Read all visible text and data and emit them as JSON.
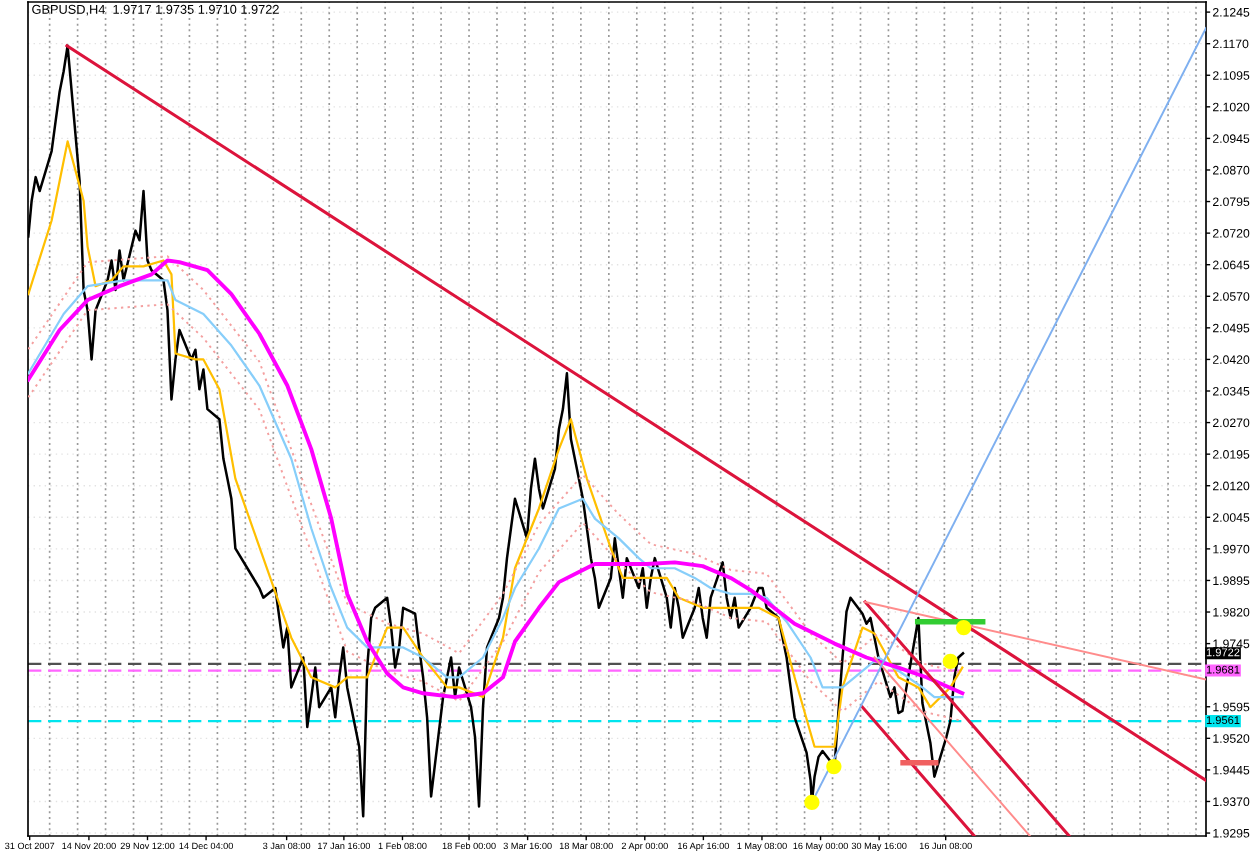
{
  "chart_data": {
    "type": "line",
    "title": "GBPUSD,H4  1.9717 1.9735 1.9710 1.9722",
    "xlim": [
      "2007-10-30T14:00",
      "2008-08-20T12:00"
    ],
    "xticks": [
      {
        "value": "2007-10-31",
        "label": "31 Oct 2007"
      },
      {
        "value": "2007-11-14T20:00",
        "label": "14 Nov 20:00"
      },
      {
        "value": "2007-11-29T12:00",
        "label": "29 Nov 12:00"
      },
      {
        "value": "2007-12-14T04:00",
        "label": "14 Dec 04:00"
      },
      {
        "value": "2008-01-03T08:00",
        "label": "3 Jan 08:00"
      },
      {
        "value": "2008-01-17T16:00",
        "label": "17 Jan 16:00"
      },
      {
        "value": "2008-02-01T08:00",
        "label": "1 Feb 08:00"
      },
      {
        "value": "2008-02-18T00:00",
        "label": "18 Feb 00:00"
      },
      {
        "value": "2008-03-03T16:00",
        "label": "3 Mar 16:00"
      },
      {
        "value": "2008-03-18T08:00",
        "label": "18 Mar 08:00"
      },
      {
        "value": "2008-04-02T00:00",
        "label": "2 Apr 00:00"
      },
      {
        "value": "2008-04-16T16:00",
        "label": "16 Apr 16:00"
      },
      {
        "value": "2008-05-01T08:00",
        "label": "1 May 08:00"
      },
      {
        "value": "2008-05-16T00:00",
        "label": "16 May 00:00"
      },
      {
        "value": "2008-05-30T16:00",
        "label": "30 May 16:00"
      },
      {
        "value": "2008-06-16T08:00",
        "label": "16 Jun 08:00"
      }
    ],
    "ylim": [
      1.9288,
      2.1269
    ],
    "yticks": [
      2.1245,
      {
        "value": 2.117,
        "label": "2.1170"
      },
      2.1095,
      {
        "value": 2.102,
        "label": "2.1020"
      },
      2.0945,
      {
        "value": 2.087,
        "label": "2.0870"
      },
      2.0795,
      {
        "value": 2.072,
        "label": "2.0720"
      },
      2.0645,
      {
        "value": 2.057,
        "label": "2.0570"
      },
      2.0495,
      {
        "value": 2.042,
        "label": "2.0420"
      },
      2.0345,
      {
        "value": 2.027,
        "label": "2.0270"
      },
      2.0195,
      {
        "value": 2.012,
        "label": "2.0120"
      },
      2.0045,
      {
        "value": 1.997,
        "label": "1.9970"
      },
      1.9895,
      {
        "value": 1.982,
        "label": "1.9820"
      },
      1.9745,
      {
        "value": 1.967,
        "label": null
      },
      1.9595,
      {
        "value": 1.952,
        "label": "1.9520"
      },
      1.9445,
      {
        "value": 1.937,
        "label": "1.9370"
      },
      1.9295
    ],
    "grid": "y",
    "series": [
      {
        "color": "#000000",
        "x": [
          "2007-10-30T16:00",
          "2007-10-31T12:00",
          "2007-11-01T12:00",
          "2007-11-02T12:00",
          "2007-11-05T12:00",
          "2007-11-06T12:00",
          "2007-11-07T12:00",
          "2007-11-08T12:00",
          "2007-11-09T12:00",
          "2007-11-12T12:00",
          "2007-11-13T12:00",
          "2007-11-14T12:00",
          "2007-11-15T12:00",
          "2007-11-16T12:00",
          "2007-11-19T12:00",
          "2007-11-20T12:00",
          "2007-11-21T12:00",
          "2007-11-22T12:00",
          "2007-11-23T12:00",
          "2007-11-26T12:00",
          "2007-11-27T12:00",
          "2007-11-28T12:00",
          "2007-11-29T12:00",
          "2007-11-30T12:00",
          "2007-12-03T12:00",
          "2007-12-04T12:00",
          "2007-12-05T12:00",
          "2007-12-06T12:00",
          "2007-12-07T12:00",
          "2007-12-10T12:00",
          "2007-12-11T12:00",
          "2007-12-12T12:00",
          "2007-12-13T12:00",
          "2007-12-14T12:00",
          "2007-12-17T12:00",
          "2007-12-18T12:00",
          "2007-12-19T12:00",
          "2007-12-20T12:00",
          "2007-12-21T12:00",
          "2007-12-24T12:00",
          "2007-12-27T12:00",
          "2007-12-28T12:00",
          "2007-12-31T12:00",
          "2008-01-02T12:00",
          "2008-01-03T12:00",
          "2008-01-04T12:00",
          "2008-01-07T12:00",
          "2008-01-08T12:00",
          "2008-01-09T12:00",
          "2008-01-10T12:00",
          "2008-01-11T12:00",
          "2008-01-14T12:00",
          "2008-01-15T12:00",
          "2008-01-16T12:00",
          "2008-01-17T12:00",
          "2008-01-18T12:00",
          "2008-01-21T12:00",
          "2008-01-22T12:00",
          "2008-01-23T12:00",
          "2008-01-24T12:00",
          "2008-01-25T12:00",
          "2008-01-28T12:00",
          "2008-01-29T12:00",
          "2008-01-30T12:00",
          "2008-01-31T12:00",
          "2008-02-01T12:00",
          "2008-02-04T12:00",
          "2008-02-05T12:00",
          "2008-02-06T12:00",
          "2008-02-07T12:00",
          "2008-02-08T12:00",
          "2008-02-11T12:00",
          "2008-02-12T12:00",
          "2008-02-13T12:00",
          "2008-02-14T12:00",
          "2008-02-15T12:00",
          "2008-02-18T12:00",
          "2008-02-19T12:00",
          "2008-02-20T12:00",
          "2008-02-21T12:00",
          "2008-02-22T12:00",
          "2008-02-25T12:00",
          "2008-02-26T12:00",
          "2008-02-27T12:00",
          "2008-02-28T12:00",
          "2008-02-29T12:00",
          "2008-03-03T12:00",
          "2008-03-04T12:00",
          "2008-03-05T12:00",
          "2008-03-06T12:00",
          "2008-03-07T12:00",
          "2008-03-10T12:00",
          "2008-03-11T12:00",
          "2008-03-12T12:00",
          "2008-03-13T12:00",
          "2008-03-14T12:00",
          "2008-03-17T12:00",
          "2008-03-18T12:00",
          "2008-03-19T12:00",
          "2008-03-20T12:00",
          "2008-03-21T12:00",
          "2008-03-24T12:00",
          "2008-03-25T12:00",
          "2008-03-26T12:00",
          "2008-03-27T12:00",
          "2008-03-28T12:00",
          "2008-03-31T12:00",
          "2008-04-01T12:00",
          "2008-04-02T12:00",
          "2008-04-03T12:00",
          "2008-04-04T12:00",
          "2008-04-07T12:00",
          "2008-04-08T12:00",
          "2008-04-09T12:00",
          "2008-04-10T12:00",
          "2008-04-11T12:00",
          "2008-04-14T12:00",
          "2008-04-15T12:00",
          "2008-04-16T12:00",
          "2008-04-17T12:00",
          "2008-04-18T12:00",
          "2008-04-21T12:00",
          "2008-04-22T12:00",
          "2008-04-23T12:00",
          "2008-04-24T12:00",
          "2008-04-25T12:00",
          "2008-04-28T12:00",
          "2008-04-29T12:00",
          "2008-04-30T12:00",
          "2008-05-01T12:00",
          "2008-05-02T12:00",
          "2008-05-05T12:00",
          "2008-05-06T12:00",
          "2008-05-07T12:00",
          "2008-05-08T12:00",
          "2008-05-09T12:00",
          "2008-05-12T12:00",
          "2008-05-13T12:00",
          "2008-05-13T20:00",
          "2008-05-14T12:00",
          "2008-05-15T12:00",
          "2008-05-16T12:00",
          "2008-05-19T12:00",
          "2008-05-20T12:00",
          "2008-05-21T12:00",
          "2008-05-22T12:00",
          "2008-05-23T12:00",
          "2008-05-26T12:00",
          "2008-05-27T12:00",
          "2008-05-28T12:00",
          "2008-05-29T12:00",
          "2008-05-30T12:00",
          "2008-06-02T12:00",
          "2008-06-03T12:00",
          "2008-06-04T12:00",
          "2008-06-05T12:00",
          "2008-06-06T12:00",
          "2008-06-09T12:00",
          "2008-06-10T12:00",
          "2008-06-11T12:00",
          "2008-06-12T12:00",
          "2008-06-13T12:00",
          "2008-06-16T12:00",
          "2008-06-17T12:00",
          "2008-06-18T12:00",
          "2008-06-19T12:00",
          "2008-06-20T16:00"
        ],
        "values": [
          2.0712,
          2.0797,
          2.0853,
          2.082,
          2.0915,
          2.0986,
          2.1056,
          2.1104,
          2.1165,
          2.0844,
          2.0585,
          2.0537,
          2.042,
          2.0537,
          2.0608,
          2.0655,
          2.0585,
          2.0679,
          2.0608,
          2.0726,
          2.0703,
          2.082,
          2.0655,
          2.0632,
          2.0608,
          2.0537,
          2.0325,
          2.042,
          2.049,
          2.042,
          2.0443,
          2.0349,
          2.0396,
          2.0302,
          2.0278,
          2.0184,
          2.0137,
          2.0089,
          1.9971,
          1.9924,
          1.9877,
          1.9854,
          1.9877,
          1.9736,
          1.9783,
          1.9641,
          1.9712,
          1.9547,
          1.9618,
          1.9688,
          1.9594,
          1.9641,
          1.957,
          1.9665,
          1.9736,
          1.9641,
          1.95,
          1.9335,
          1.9688,
          1.9806,
          1.983,
          1.9854,
          1.9783,
          1.9688,
          1.9736,
          1.983,
          1.9816,
          1.9736,
          1.9665,
          1.957,
          1.9382,
          1.9618,
          1.9665,
          1.9712,
          1.9618,
          1.9688,
          1.9594,
          1.9523,
          1.9358,
          1.9594,
          1.9736,
          1.9806,
          1.9854,
          1.9948,
          2.0019,
          2.0089,
          1.9995,
          2.0113,
          2.0184,
          2.0113,
          2.0066,
          2.016,
          2.0254,
          2.0302,
          2.0387,
          2.0231,
          2.0089,
          2.0019,
          1.9948,
          1.9901,
          1.983,
          1.9901,
          1.9995,
          1.9924,
          1.9854,
          1.9948,
          1.9877,
          1.9924,
          1.983,
          1.9901,
          1.9948,
          1.9854,
          1.9783,
          1.9877,
          1.983,
          1.9759,
          1.983,
          1.9877,
          1.9806,
          1.9759,
          1.9854,
          1.9938,
          1.9854,
          1.9806,
          1.9854,
          1.9783,
          1.983,
          1.9854,
          1.9877,
          1.9877,
          1.983,
          1.9806,
          1.9759,
          1.9712,
          1.9641,
          1.957,
          1.9486,
          1.942,
          1.9368,
          1.9429,
          1.9476,
          1.949,
          1.9453,
          1.9585,
          1.9712,
          1.9821,
          1.9854,
          1.9816,
          1.9792,
          1.9806,
          1.9759,
          1.9712,
          1.9618,
          1.9641,
          1.958,
          1.9585,
          1.9641,
          1.9806,
          1.9604,
          1.9556,
          1.9509,
          1.9429,
          1.9523,
          1.9561,
          1.9665,
          1.9712,
          1.9722
        ]
      },
      {
        "color": "#ffbf00",
        "x": [
          "2007-10-30T16:00",
          "2007-11-05T12:00",
          "2007-11-07T12:00",
          "2007-11-09T12:00",
          "2007-11-13T12:00",
          "2007-11-14T12:00",
          "2007-11-16T12:00",
          "2007-11-20T12:00",
          "2007-11-23T12:00",
          "2007-11-28T12:00",
          "2007-12-03T12:00",
          "2007-12-05T12:00",
          "2007-12-06T12:00",
          "2007-12-11T12:00",
          "2007-12-13T12:00",
          "2007-12-17T12:00",
          "2007-12-21T12:00",
          "2007-12-28T12:00",
          "2008-01-04T12:00",
          "2008-01-09T12:00",
          "2008-01-15T12:00",
          "2008-01-18T12:00",
          "2008-01-23T12:00",
          "2008-01-28T12:00",
          "2008-02-01T12:00",
          "2008-02-06T12:00",
          "2008-02-12T12:00",
          "2008-02-15T12:00",
          "2008-02-21T12:00",
          "2008-02-26T12:00",
          "2008-02-29T12:00",
          "2008-03-06T12:00",
          "2008-03-11T12:00",
          "2008-03-14T12:00",
          "2008-03-18T12:00",
          "2008-03-24T12:00",
          "2008-03-27T12:00",
          "2008-04-01T12:00",
          "2008-04-07T12:00",
          "2008-04-10T12:00",
          "2008-04-16T12:00",
          "2008-04-21T12:00",
          "2008-04-25T12:00",
          "2008-04-30T12:00",
          "2008-05-05T12:00",
          "2008-05-09T12:00",
          "2008-05-14T12:00",
          "2008-05-19T12:00",
          "2008-05-21T12:00",
          "2008-05-26T12:00",
          "2008-05-29T12:00",
          "2008-06-04T12:00",
          "2008-06-09T12:00",
          "2008-06-12T12:00",
          "2008-06-17T12:00",
          "2008-06-20T12:00"
        ],
        "values": [
          2.0575,
          2.075,
          2.0844,
          2.0938,
          2.0797,
          2.0688,
          2.0594,
          2.0608,
          2.0641,
          2.0641,
          2.0655,
          2.0622,
          2.0434,
          2.042,
          2.042,
          2.0349,
          2.0137,
          1.9948,
          1.9759,
          1.9665,
          1.9641,
          1.9665,
          1.9665,
          1.9783,
          1.9783,
          1.9712,
          1.9641,
          1.9641,
          1.9618,
          1.9759,
          1.9924,
          2.0066,
          2.0207,
          2.0278,
          2.0137,
          1.9971,
          1.9901,
          1.9901,
          1.9901,
          1.9854,
          1.983,
          1.983,
          1.983,
          1.983,
          1.9806,
          1.9665,
          1.95,
          1.95,
          1.9641,
          1.9783,
          1.9769,
          1.9665,
          1.9641,
          1.9594,
          1.9641,
          1.9688
        ]
      },
      {
        "color": "#87cefa",
        "x": [
          "2007-10-30T16:00",
          "2007-11-08T12:00",
          "2007-11-14T12:00",
          "2007-11-23T12:00",
          "2007-12-04T12:00",
          "2007-12-06T12:00",
          "2007-12-13T12:00",
          "2007-12-20T12:00",
          "2007-12-27T12:00",
          "2008-01-04T12:00",
          "2008-01-09T12:00",
          "2008-01-14T12:00",
          "2008-01-18T12:00",
          "2008-01-23T12:00",
          "2008-01-28T12:00",
          "2008-02-01T12:00",
          "2008-02-06T12:00",
          "2008-02-12T12:00",
          "2008-02-15T12:00",
          "2008-02-21T12:00",
          "2008-02-26T12:00",
          "2008-02-29T12:00",
          "2008-03-06T12:00",
          "2008-03-11T12:00",
          "2008-03-17T12:00",
          "2008-03-20T12:00",
          "2008-03-26T12:00",
          "2008-03-31T12:00",
          "2008-04-03T12:00",
          "2008-04-09T12:00",
          "2008-04-14T12:00",
          "2008-04-18T12:00",
          "2008-04-23T12:00",
          "2008-04-28T12:00",
          "2008-05-02T12:00",
          "2008-05-07T12:00",
          "2008-05-13T12:00",
          "2008-05-16T12:00",
          "2008-05-21T12:00",
          "2008-05-27T12:00",
          "2008-05-30T12:00",
          "2008-06-05T12:00",
          "2008-06-10T12:00",
          "2008-06-13T12:00",
          "2008-06-20T12:00"
        ],
        "values": [
          2.0387,
          2.0528,
          2.0594,
          2.0608,
          2.0608,
          2.0561,
          2.0528,
          2.0453,
          2.0358,
          2.0184,
          2.0019,
          1.9877,
          1.9783,
          1.9736,
          1.9736,
          1.9736,
          1.9712,
          1.9665,
          1.9665,
          1.9712,
          1.9806,
          1.9877,
          1.9971,
          2.0066,
          2.0089,
          2.0042,
          1.9995,
          1.9948,
          1.9924,
          1.9924,
          1.9901,
          1.9877,
          1.9863,
          1.9863,
          1.9854,
          1.9797,
          1.9712,
          1.9641,
          1.9641,
          1.9688,
          1.9712,
          1.9674,
          1.9641,
          1.9618,
          1.9618
        ]
      },
      {
        "color": "#ff00ff",
        "x": [
          "2007-10-30T16:00",
          "2007-11-07T12:00",
          "2007-11-14T12:00",
          "2007-11-22T12:00",
          "2007-11-30T12:00",
          "2007-12-04T12:00",
          "2007-12-07T12:00",
          "2007-12-14T12:00",
          "2007-12-20T12:00",
          "2007-12-27T12:00",
          "2008-01-03T12:00",
          "2008-01-09T12:00",
          "2008-01-14T12:00",
          "2008-01-18T12:00",
          "2008-01-23T12:00",
          "2008-01-28T12:00",
          "2008-02-01T12:00",
          "2008-02-06T12:00",
          "2008-02-14T12:00",
          "2008-02-21T12:00",
          "2008-02-26T12:00",
          "2008-02-29T12:00",
          "2008-03-06T12:00",
          "2008-03-11T12:00",
          "2008-03-17T12:00",
          "2008-03-20T12:00",
          "2008-03-26T12:00",
          "2008-04-02T12:00",
          "2008-04-09T12:00",
          "2008-04-16T12:00",
          "2008-04-23T12:00",
          "2008-04-28T12:00",
          "2008-05-02T12:00",
          "2008-05-09T12:00",
          "2008-05-19T12:00",
          "2008-05-27T12:00",
          "2008-06-04T12:00",
          "2008-06-11T12:00",
          "2008-06-20T12:00"
        ],
        "values": [
          2.0372,
          2.049,
          2.0561,
          2.0594,
          2.0622,
          2.0655,
          2.0651,
          2.0632,
          2.0575,
          2.0481,
          2.0358,
          2.0207,
          2.0042,
          1.9863,
          1.975,
          1.9674,
          1.9641,
          1.9627,
          1.9618,
          1.9627,
          1.9665,
          1.975,
          1.983,
          1.9891,
          1.992,
          1.9934,
          1.9934,
          1.9934,
          1.9938,
          1.9929,
          1.9901,
          1.9872,
          1.9844,
          1.9792,
          1.9745,
          1.9712,
          1.9688,
          1.9665,
          1.9627
        ]
      },
      {
        "color": "#f4a0a0",
        "line_style": "dotted",
        "x": [
          "2007-10-30T16:00",
          "2007-11-14T12:00",
          "2007-12-04T12:00",
          "2007-12-13T12:00",
          "2007-12-27T12:00",
          "2008-01-09T12:00",
          "2008-01-18T12:00",
          "2008-01-28T12:00",
          "2008-02-06T12:00",
          "2008-02-15T12:00",
          "2008-02-26T12:00",
          "2008-03-06T12:00",
          "2008-03-17T12:00",
          "2008-03-26T12:00",
          "2008-04-03T12:00",
          "2008-04-14T12:00",
          "2008-04-23T12:00",
          "2008-05-02T12:00",
          "2008-05-13T12:00",
          "2008-05-21T12:00",
          "2008-05-30T12:00",
          "2008-06-10T12:00",
          "2008-06-20T12:00"
        ],
        "values": [
          2.0444,
          2.0651,
          2.0665,
          2.0585,
          2.0415,
          2.0076,
          1.984,
          1.9793,
          1.9769,
          1.9722,
          1.9863,
          2.0028,
          2.0146,
          2.0052,
          1.9981,
          1.9958,
          1.992,
          1.9911,
          1.9769,
          1.9698,
          1.9769,
          1.9698,
          1.9675
        ]
      },
      {
        "color": "#f4a0a0",
        "line_style": "dotted",
        "x": [
          "2007-10-30T16:00",
          "2007-11-14T12:00",
          "2007-12-04T12:00",
          "2007-12-13T12:00",
          "2007-12-27T12:00",
          "2008-01-09T12:00",
          "2008-01-18T12:00",
          "2008-01-28T12:00",
          "2008-02-06T12:00",
          "2008-02-15T12:00",
          "2008-02-26T12:00",
          "2008-03-06T12:00",
          "2008-03-17T12:00",
          "2008-03-26T12:00",
          "2008-04-03T12:00",
          "2008-04-14T12:00",
          "2008-04-23T12:00",
          "2008-05-02T12:00",
          "2008-05-13T12:00",
          "2008-05-21T12:00",
          "2008-05-30T12:00",
          "2008-06-10T12:00",
          "2008-06-20T12:00"
        ],
        "values": [
          2.033,
          2.0537,
          2.0551,
          2.0471,
          2.0301,
          1.9962,
          1.9726,
          1.9679,
          1.9655,
          1.9608,
          1.9749,
          1.9914,
          2.0032,
          1.9938,
          1.9867,
          1.9844,
          1.9806,
          1.9797,
          1.9655,
          1.9584,
          1.9655,
          1.9584,
          1.9561
        ]
      },
      {
        "color": "#dc143c",
        "x": [
          "2007-11-09T08:00",
          "2008-08-20T12:00"
        ],
        "values": [
          2.1165,
          1.942
        ]
      },
      {
        "color": "#dc143c",
        "x": [
          "2008-05-27T04:00",
          "2008-07-17T06:00"
        ],
        "values": [
          1.9844,
          1.9288
        ]
      },
      {
        "color": "#dc143c",
        "x": [
          "2008-05-26T12:00",
          "2008-06-23T12:00"
        ],
        "values": [
          1.9594,
          1.9288
        ]
      },
      {
        "color": "#ff8c8c",
        "x": [
          "2008-05-27T04:00",
          "2008-08-20T12:00"
        ],
        "values": [
          1.9844,
          1.966
        ]
      },
      {
        "color": "#ff8c8c",
        "x": [
          "2008-05-29T12:00",
          "2008-07-07T10:00"
        ],
        "values": [
          1.9712,
          1.9288
        ]
      },
      {
        "color": "#7fb0f0",
        "x": [
          "2008-05-13T20:00",
          "2008-08-20T12:00"
        ],
        "values": [
          1.9368,
          2.1207
        ]
      },
      {
        "color": "#32cd32",
        "x": [
          "2008-06-09T08:00",
          "2008-06-25T14:00"
        ],
        "values": [
          1.9797,
          1.9797
        ]
      },
      {
        "color": "#f06060",
        "x": [
          "2008-06-05T16:00",
          "2008-06-13T20:00"
        ],
        "values": [
          1.9462,
          1.9462
        ]
      },
      {
        "type": "scatter",
        "color": "#ffff00",
        "marker": "circle",
        "x": [
          "2008-05-13T20:00",
          "2008-05-19T08:00",
          "2008-06-17T12:00",
          "2008-06-20T20:00"
        ],
        "values": [
          1.9368,
          1.9453,
          1.9703,
          1.9783
        ]
      }
    ],
    "ref_lines": [
      {
        "axis": "x",
        "value": "2007-11-05",
        "color": "#999999",
        "line_style": "dotted"
      },
      {
        "axis": "x",
        "value": "2007-11-12",
        "color": "#999999",
        "line_style": "dotted"
      },
      {
        "axis": "x",
        "value": "2007-11-19",
        "color": "#999999",
        "line_style": "dotted"
      },
      {
        "axis": "x",
        "value": "2007-11-26",
        "color": "#999999",
        "line_style": "dotted"
      },
      {
        "axis": "x",
        "value": "2007-12-03",
        "color": "#999999",
        "line_style": "dotted"
      },
      {
        "axis": "x",
        "value": "2007-12-10",
        "color": "#999999",
        "line_style": "dotted"
      },
      {
        "axis": "x",
        "value": "2007-12-17",
        "color": "#999999",
        "line_style": "dotted"
      },
      {
        "axis": "x",
        "value": "2007-12-24",
        "color": "#999999",
        "line_style": "dotted"
      },
      {
        "axis": "x",
        "value": "2007-12-31",
        "color": "#999999",
        "line_style": "dotted"
      },
      {
        "axis": "x",
        "value": "2008-01-07",
        "color": "#999999",
        "line_style": "dotted"
      },
      {
        "axis": "x",
        "value": "2008-01-14",
        "color": "#999999",
        "line_style": "dotted"
      },
      {
        "axis": "x",
        "value": "2008-01-21",
        "color": "#999999",
        "line_style": "dotted"
      },
      {
        "axis": "x",
        "value": "2008-01-28",
        "color": "#999999",
        "line_style": "dotted"
      },
      {
        "axis": "x",
        "value": "2008-02-04",
        "color": "#999999",
        "line_style": "dotted"
      },
      {
        "axis": "x",
        "value": "2008-02-11",
        "color": "#999999",
        "line_style": "dotted"
      },
      {
        "axis": "x",
        "value": "2008-02-18",
        "color": "#999999",
        "line_style": "dotted"
      },
      {
        "axis": "x",
        "value": "2008-02-25",
        "color": "#999999",
        "line_style": "dotted"
      },
      {
        "axis": "x",
        "value": "2008-03-03",
        "color": "#999999",
        "line_style": "dotted"
      },
      {
        "axis": "x",
        "value": "2008-03-10",
        "color": "#999999",
        "line_style": "dotted"
      },
      {
        "axis": "x",
        "value": "2008-03-17",
        "color": "#999999",
        "line_style": "dotted"
      },
      {
        "axis": "x",
        "value": "2008-03-24",
        "color": "#999999",
        "line_style": "dotted"
      },
      {
        "axis": "x",
        "value": "2008-03-31",
        "color": "#999999",
        "line_style": "dotted"
      },
      {
        "axis": "x",
        "value": "2008-04-07",
        "color": "#999999",
        "line_style": "dotted"
      },
      {
        "axis": "x",
        "value": "2008-04-14",
        "color": "#999999",
        "line_style": "dotted"
      },
      {
        "axis": "x",
        "value": "2008-04-21",
        "color": "#999999",
        "line_style": "dotted"
      },
      {
        "axis": "x",
        "value": "2008-04-28",
        "color": "#999999",
        "line_style": "dotted"
      },
      {
        "axis": "x",
        "value": "2008-05-05",
        "color": "#999999",
        "line_style": "dotted"
      },
      {
        "axis": "x",
        "value": "2008-05-12",
        "color": "#999999",
        "line_style": "dotted"
      },
      {
        "axis": "x",
        "value": "2008-05-19",
        "color": "#999999",
        "line_style": "dotted"
      },
      {
        "axis": "x",
        "value": "2008-05-26",
        "color": "#999999",
        "line_style": "dotted"
      },
      {
        "axis": "x",
        "value": "2008-06-02",
        "color": "#999999",
        "line_style": "dotted"
      },
      {
        "axis": "x",
        "value": "2008-06-09",
        "color": "#999999",
        "line_style": "dotted"
      },
      {
        "axis": "x",
        "value": "2008-06-16",
        "color": "#999999",
        "line_style": "dotted"
      },
      {
        "axis": "x",
        "value": "2008-06-23",
        "color": "#999999",
        "line_style": "dotted"
      },
      {
        "axis": "x",
        "value": "2008-06-30",
        "color": "#999999",
        "line_style": "dotted"
      },
      {
        "axis": "x",
        "value": "2008-07-07",
        "color": "#999999",
        "line_style": "dotted"
      },
      {
        "axis": "x",
        "value": "2008-07-14",
        "color": "#999999",
        "line_style": "dotted"
      },
      {
        "axis": "x",
        "value": "2008-07-21",
        "color": "#999999",
        "line_style": "dotted"
      },
      {
        "axis": "x",
        "value": "2008-07-28",
        "color": "#999999",
        "line_style": "dotted"
      },
      {
        "axis": "x",
        "value": "2008-08-04",
        "color": "#999999",
        "line_style": "dotted"
      },
      {
        "axis": "x",
        "value": "2008-08-11",
        "color": "#999999",
        "line_style": "dotted"
      },
      {
        "axis": "x",
        "value": "2008-08-18",
        "color": "#999999",
        "line_style": "dotted"
      },
      {
        "axis": "y",
        "value": 1.9697,
        "color": "#505050",
        "line_style": "dashed"
      },
      {
        "axis": "y",
        "value": 1.9681,
        "label": "1.9681",
        "color": "#ff66ff",
        "line_style": "dashed"
      },
      {
        "axis": "y",
        "value": 1.9561,
        "label": "1.9561",
        "color": "#00e5ee",
        "line_style": "dashed"
      }
    ],
    "annotations": [
      {
        "text": "1.9722",
        "y": 1.9722
      }
    ]
  }
}
